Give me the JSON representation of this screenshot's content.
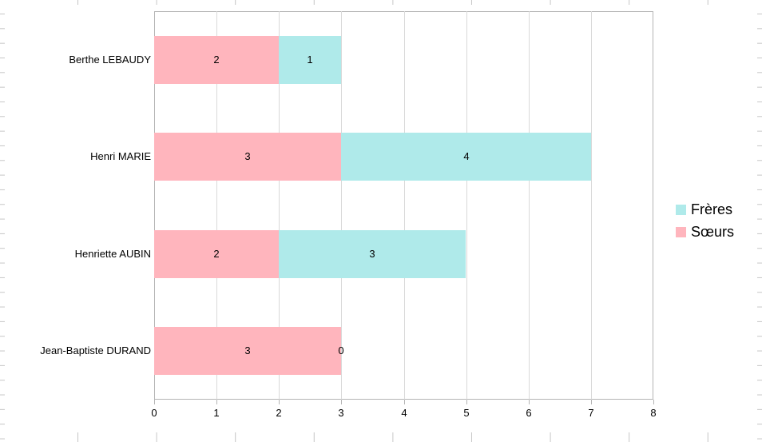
{
  "chart_data": {
    "type": "bar",
    "orientation": "horizontal",
    "stacked": true,
    "title": "",
    "xlabel": "",
    "ylabel": "",
    "categories": [
      "Berthe LEBAUDY",
      "Henri MARIE",
      "Henriette AUBIN",
      "Jean-Baptiste DURAND"
    ],
    "series": [
      {
        "name": "Sœurs",
        "color": "#ffb5bd",
        "values": [
          2,
          3,
          2,
          3
        ]
      },
      {
        "name": "Frères",
        "color": "#afeaea",
        "values": [
          1,
          4,
          3,
          0
        ]
      }
    ],
    "data_labels": [
      [
        "2",
        "1"
      ],
      [
        "3",
        "4"
      ],
      [
        "2",
        "3"
      ],
      [
        "3",
        "0"
      ]
    ],
    "xlim": [
      0,
      8
    ],
    "xticks": [
      "0",
      "1",
      "2",
      "3",
      "4",
      "5",
      "6",
      "7",
      "8"
    ],
    "grid": "vertical-major",
    "legend": {
      "position": "right",
      "entries": [
        {
          "label": "Frères",
          "color": "#afeaea"
        },
        {
          "label": "Sœurs",
          "color": "#ffb5bd"
        }
      ]
    },
    "colors": {
      "plot_border": "#b4b4b4",
      "gridline": "#d9d9d9",
      "sheet_grid": "#c6c6c6",
      "text": "#000000",
      "background": "#ffffff"
    }
  }
}
